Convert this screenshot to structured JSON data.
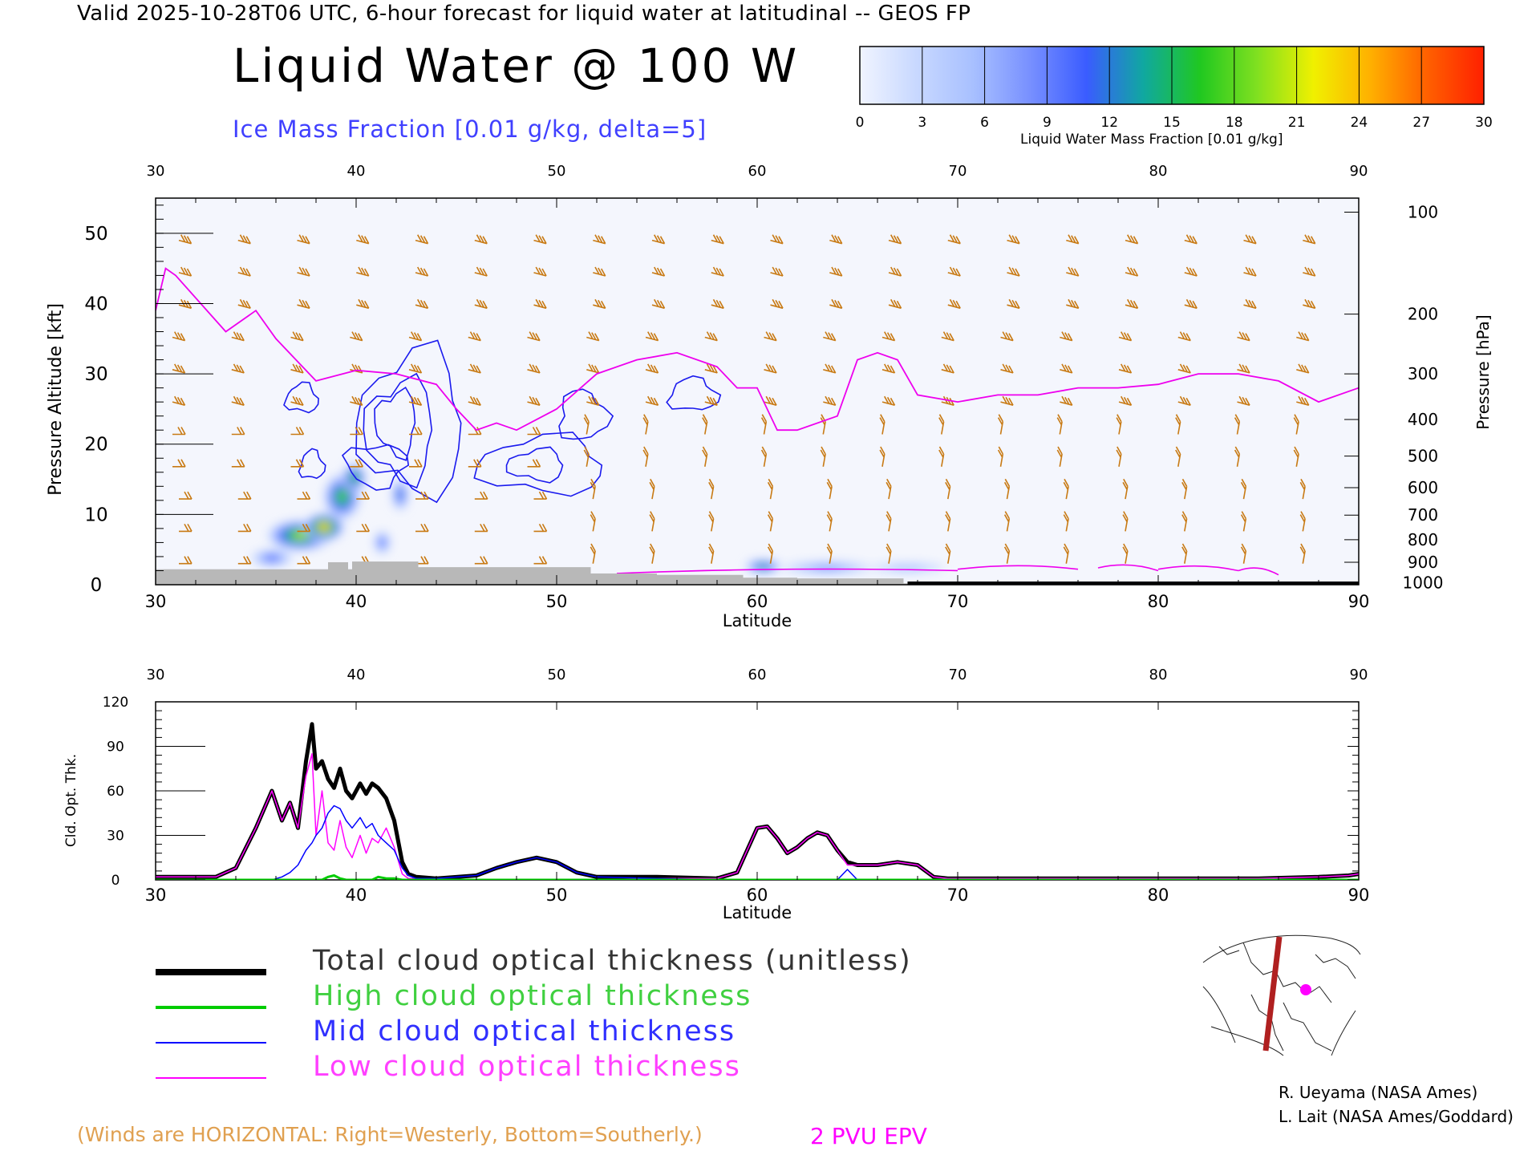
{
  "header": {
    "valid_line": "Valid 2025-10-28T06 UTC, 6-hour forecast for liquid water at latitudinal -- GEOS FP",
    "title": "Liquid Water @ 100 W",
    "subtitle": "Ice Mass Fraction [0.01 g/kg, delta=5]"
  },
  "colorbar": {
    "label": "Liquid Water Mass Fraction [0.01 g/kg]",
    "ticks": [
      "0",
      "3",
      "6",
      "9",
      "12",
      "15",
      "18",
      "21",
      "24",
      "27",
      "30"
    ],
    "colors": [
      "#f0f4ff",
      "#c8d8ff",
      "#a8c0ff",
      "#7890ff",
      "#3a5cff",
      "#10a8a0",
      "#20c820",
      "#80e020",
      "#f0f000",
      "#ffb000",
      "#ff6000"
    ],
    "end_color": "#ff2000"
  },
  "chart_data": [
    {
      "type": "heatmap",
      "title": "Liquid Water @ 100 W",
      "xlabel": "Latitude",
      "ylabel": "Pressure Altitude [kft]",
      "y2label": "Pressure [hPa]",
      "xlim": [
        30,
        90
      ],
      "ylim": [
        0,
        55
      ],
      "x_ticks": [
        "30",
        "40",
        "50",
        "60",
        "70",
        "80",
        "90"
      ],
      "y_ticks": [
        "0",
        "10",
        "20",
        "30",
        "40",
        "50"
      ],
      "pressure_ticks": [
        {
          "label": "100",
          "kft": 53
        },
        {
          "label": "200",
          "kft": 38.5
        },
        {
          "label": "300",
          "kft": 30
        },
        {
          "label": "400",
          "kft": 23.5
        },
        {
          "label": "500",
          "kft": 18.3
        },
        {
          "label": "600",
          "kft": 13.8
        },
        {
          "label": "700",
          "kft": 9.9
        },
        {
          "label": "800",
          "kft": 6.4
        },
        {
          "label": "900",
          "kft": 3.2
        },
        {
          "label": "1000",
          "kft": 0.3
        }
      ],
      "liquid_water_blobs": [
        {
          "lat": 37.2,
          "kft": 7.0,
          "lat_r": 1.6,
          "kft_r": 2.2,
          "value": 24
        },
        {
          "lat": 38.4,
          "kft": 8.2,
          "lat_r": 1.0,
          "kft_r": 2.0,
          "value": 30
        },
        {
          "lat": 39.3,
          "kft": 12.5,
          "lat_r": 0.9,
          "kft_r": 3.2,
          "value": 22
        },
        {
          "lat": 39.9,
          "kft": 15.2,
          "lat_r": 0.6,
          "kft_r": 2.0,
          "value": 20
        },
        {
          "lat": 41.3,
          "kft": 6.0,
          "lat_r": 0.4,
          "kft_r": 1.6,
          "value": 12
        },
        {
          "lat": 42.2,
          "kft": 12.8,
          "lat_r": 0.4,
          "kft_r": 2.2,
          "value": 16
        },
        {
          "lat": 35.8,
          "kft": 3.8,
          "lat_r": 1.0,
          "kft_r": 1.2,
          "value": 12
        },
        {
          "lat": 60.3,
          "kft": 2.6,
          "lat_r": 0.9,
          "kft_r": 1.0,
          "value": 18
        },
        {
          "lat": 63.5,
          "kft": 2.4,
          "lat_r": 2.2,
          "kft_r": 0.9,
          "value": 9
        },
        {
          "lat": 67.5,
          "kft": 2.4,
          "lat_r": 1.8,
          "kft_r": 0.7,
          "value": 6
        }
      ],
      "ice_contours": [
        {
          "lat": 42.8,
          "kft": 23,
          "lat_r": 2.6,
          "kft_r": 10,
          "level": 5
        },
        {
          "lat": 42.2,
          "kft": 22,
          "lat_r": 1.7,
          "kft_r": 7,
          "level": 10
        },
        {
          "lat": 42.0,
          "kft": 23,
          "lat_r": 1.0,
          "kft_r": 4.5,
          "level": 15
        },
        {
          "lat": 41.0,
          "kft": 17,
          "lat_r": 1.5,
          "kft_r": 3,
          "level": 10
        },
        {
          "lat": 49.3,
          "kft": 17,
          "lat_r": 3.1,
          "kft_r": 4.0,
          "level": 5
        },
        {
          "lat": 49.0,
          "kft": 17,
          "lat_r": 1.4,
          "kft_r": 2.2,
          "level": 10
        },
        {
          "lat": 51.3,
          "kft": 24,
          "lat_r": 1.2,
          "kft_r": 3.5,
          "level": 5
        },
        {
          "lat": 56.8,
          "kft": 27,
          "lat_r": 1.2,
          "kft_r": 2.3,
          "level": 5
        },
        {
          "lat": 37.3,
          "kft": 26.5,
          "lat_r": 0.8,
          "kft_r": 2.0,
          "level": 5
        },
        {
          "lat": 37.8,
          "kft": 17,
          "lat_r": 0.6,
          "kft_r": 2.0,
          "level": 5
        }
      ],
      "pvu2_epv_line": {
        "lat": [
          30,
          30.5,
          31,
          33.5,
          35,
          36,
          38,
          40,
          42,
          44,
          45,
          46,
          47,
          48,
          50,
          52,
          54,
          56,
          58,
          59,
          60,
          61,
          62,
          64,
          65,
          66,
          67,
          68,
          70,
          72,
          74,
          76,
          78,
          80,
          82,
          84,
          86,
          88,
          90
        ],
        "kft": [
          39,
          45,
          44,
          36,
          39,
          35,
          29,
          30.5,
          30,
          28.5,
          25,
          22,
          23,
          22,
          25,
          30,
          32,
          33,
          31,
          28,
          28,
          22,
          22,
          24,
          32,
          33,
          32,
          27,
          26,
          27,
          27,
          28,
          28,
          28.5,
          30,
          30,
          29,
          26,
          28
        ]
      },
      "terrain": [
        {
          "lat_from": 30,
          "lat_to": 38.6,
          "kft": 2.2
        },
        {
          "lat_from": 38.6,
          "lat_to": 39.6,
          "kft": 3.2
        },
        {
          "lat_from": 39.6,
          "lat_to": 39.8,
          "kft": 2.2
        },
        {
          "lat_from": 39.8,
          "lat_to": 43.1,
          "kft": 3.3
        },
        {
          "lat_from": 43.1,
          "lat_to": 51.7,
          "kft": 2.5
        },
        {
          "lat_from": 51.7,
          "lat_to": 55.0,
          "kft": 1.6
        },
        {
          "lat_from": 55.0,
          "lat_to": 59.3,
          "kft": 1.4
        },
        {
          "lat_from": 59.3,
          "lat_to": 62.0,
          "kft": 1.0
        },
        {
          "lat_from": 62.0,
          "lat_to": 67.3,
          "kft": 0.9
        },
        {
          "lat_from": 67.3,
          "lat_to": 90,
          "kft": 0.2
        }
      ]
    },
    {
      "type": "line",
      "xlabel": "Latitude",
      "ylabel": "Cld. Opt. Thk.",
      "xlim": [
        30,
        90
      ],
      "ylim": [
        0,
        120
      ],
      "x_ticks": [
        "30",
        "40",
        "50",
        "60",
        "70",
        "80",
        "90"
      ],
      "y_ticks": [
        "0",
        "30",
        "60",
        "90",
        "120"
      ],
      "x": [
        30,
        33,
        34,
        35,
        35.8,
        36.3,
        36.7,
        37.1,
        37.5,
        37.8,
        38.0,
        38.3,
        38.6,
        38.9,
        39.2,
        39.5,
        39.8,
        40.2,
        40.5,
        40.8,
        41.1,
        41.5,
        41.9,
        42.3,
        42.6,
        43,
        44,
        46,
        47,
        48,
        49,
        50,
        51,
        52,
        55,
        58,
        59,
        59.5,
        60,
        60.5,
        61,
        61.5,
        62,
        62.5,
        63,
        63.5,
        64,
        64.5,
        65,
        66,
        67,
        68,
        68.8,
        69.5,
        70,
        75,
        80,
        85,
        88,
        89.5,
        90
      ],
      "series": [
        {
          "name": "Total cloud optical thickness (unitless)",
          "color": "#000000",
          "width": 5,
          "values": [
            2,
            2,
            8,
            35,
            60,
            40,
            52,
            35,
            80,
            105,
            75,
            80,
            68,
            62,
            75,
            60,
            55,
            65,
            58,
            65,
            62,
            55,
            40,
            12,
            4,
            2,
            1,
            3,
            8,
            12,
            15,
            12,
            5,
            2,
            2,
            1,
            5,
            20,
            35,
            36,
            28,
            18,
            22,
            28,
            32,
            30,
            20,
            12,
            10,
            10,
            12,
            10,
            2,
            1,
            1,
            1,
            1,
            1,
            2,
            3,
            4
          ]
        },
        {
          "name": "High cloud optical thickness",
          "color": "#00cc00",
          "width": 3,
          "values": [
            0,
            0,
            0,
            0,
            0,
            0,
            0,
            0,
            0,
            0,
            0,
            0,
            2,
            3,
            1,
            0,
            0,
            0,
            0,
            0,
            2,
            1,
            1,
            0,
            0,
            0,
            0,
            0,
            0,
            0,
            0,
            0,
            0,
            0,
            0,
            0,
            0,
            0,
            0,
            0,
            0,
            0,
            0,
            0,
            0,
            0,
            0,
            0,
            0,
            0,
            0,
            0,
            0,
            0,
            0,
            0,
            0,
            0,
            0,
            0,
            0
          ]
        },
        {
          "name": "Mid cloud optical thickness",
          "color": "#0000ff",
          "width": 1.5,
          "values": [
            0,
            0,
            0,
            0,
            0,
            2,
            5,
            10,
            20,
            25,
            30,
            35,
            45,
            50,
            48,
            40,
            35,
            42,
            35,
            38,
            30,
            25,
            20,
            8,
            3,
            1,
            1,
            3,
            8,
            12,
            15,
            12,
            5,
            2,
            1,
            0,
            0,
            0,
            0,
            0,
            0,
            0,
            0,
            0,
            0,
            0,
            0,
            7,
            0,
            0,
            0,
            0,
            0,
            0,
            0,
            0,
            0,
            0,
            0,
            0,
            0
          ]
        },
        {
          "name": "Low cloud optical thickness",
          "color": "#ff00ff",
          "width": 1.5,
          "values": [
            2,
            2,
            8,
            35,
            60,
            40,
            52,
            35,
            70,
            85,
            30,
            60,
            25,
            20,
            40,
            22,
            15,
            30,
            18,
            28,
            25,
            35,
            22,
            4,
            1,
            1,
            0,
            0,
            0,
            0,
            0,
            0,
            0,
            0,
            1,
            1,
            5,
            20,
            35,
            36,
            28,
            18,
            22,
            28,
            32,
            30,
            20,
            10,
            10,
            10,
            12,
            10,
            2,
            1,
            1,
            1,
            1,
            1,
            2,
            3,
            4
          ]
        }
      ]
    }
  ],
  "wind_note": "(Winds are HORIZONTAL: Right=Westerly, Bottom=Southerly.)",
  "pvu_note": "2 PVU EPV",
  "credits": [
    "R. Ueyama (NASA Ames)",
    "L. Lait (NASA Ames/Goddard)"
  ]
}
